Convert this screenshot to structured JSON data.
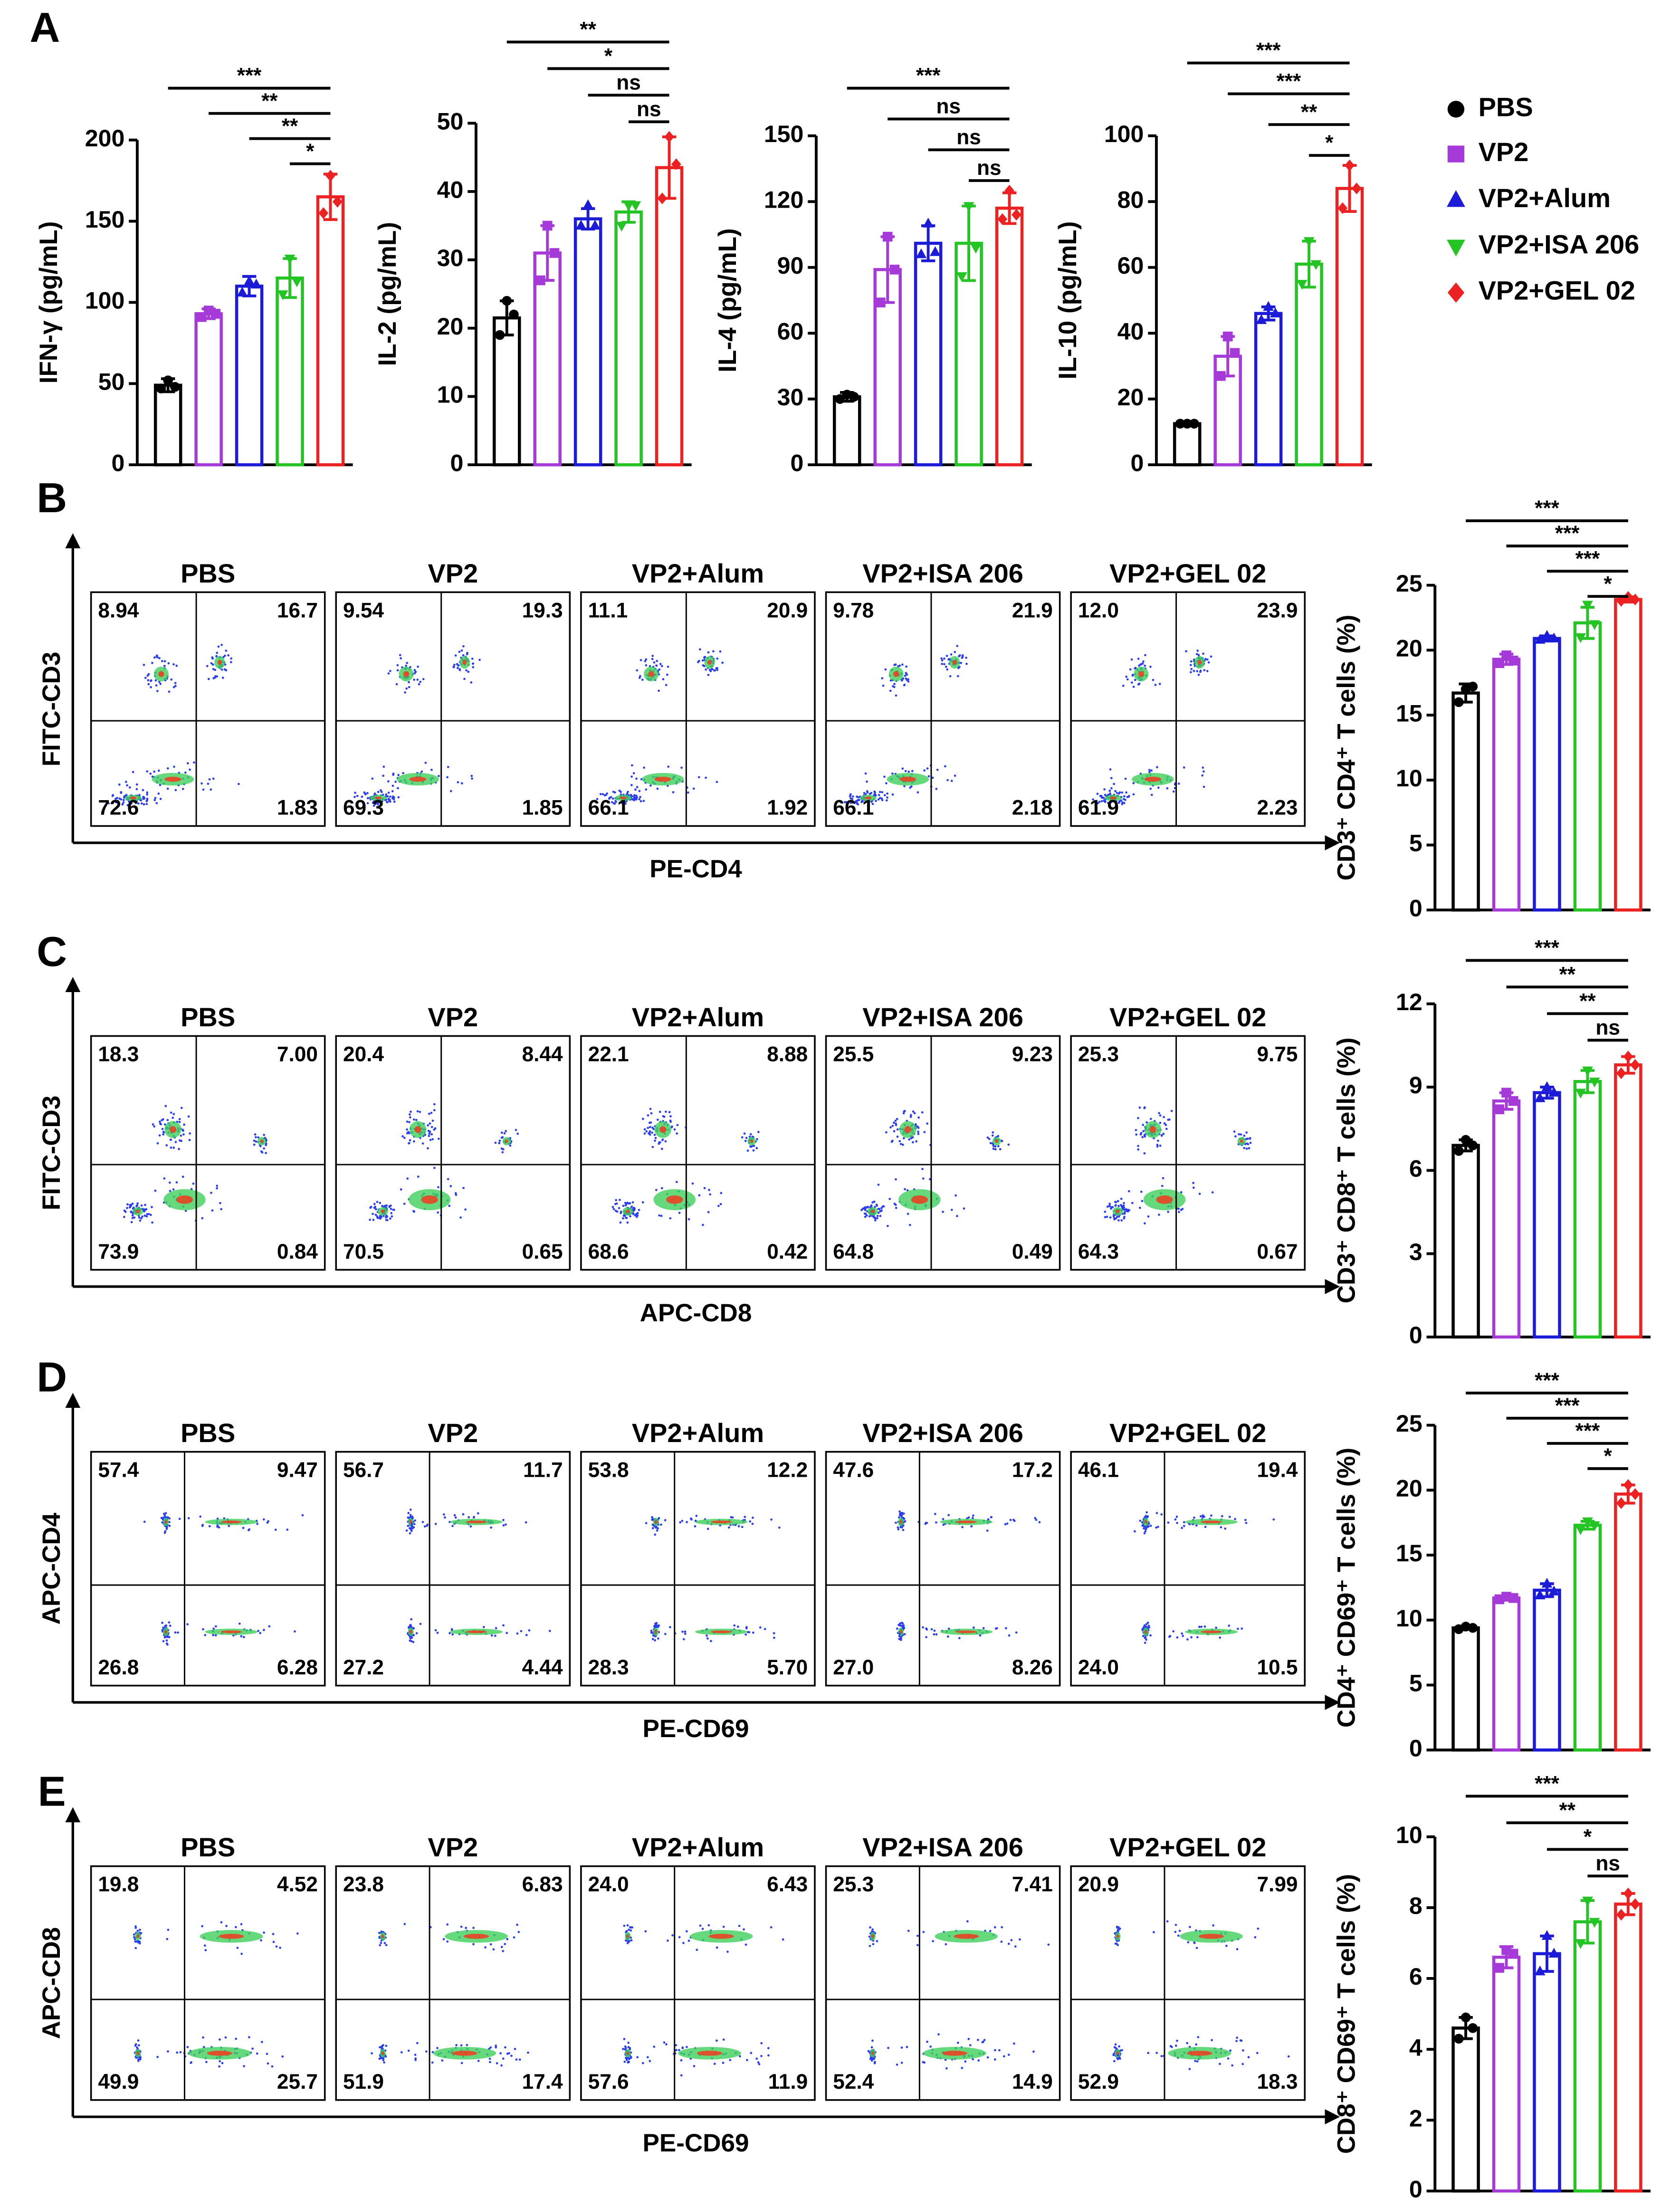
{
  "panel_labels": [
    "A",
    "B",
    "C",
    "D",
    "E"
  ],
  "legend": {
    "names": [
      "PBS",
      "VP2",
      "VP2+Alum",
      "VP2+ISA 206",
      "VP2+GEL 02"
    ],
    "colors": [
      "#000000",
      "#a63ad8",
      "#1c1cd8",
      "#25c425",
      "#ec2222"
    ],
    "markers": [
      "circle",
      "square",
      "triangle",
      "triangle-down",
      "diamond"
    ]
  },
  "chart_data": [
    {
      "type": "bar",
      "y_label": "IFN-γ (pg/mL)",
      "ylim": [
        0,
        200
      ],
      "yticks": [
        0,
        50,
        100,
        150,
        200
      ],
      "values": [
        49,
        93,
        110,
        115,
        165
      ],
      "errors": [
        4,
        3,
        6,
        12,
        14
      ],
      "points": [
        [
          47,
          52,
          48
        ],
        [
          91,
          95,
          93
        ],
        [
          106,
          113,
          111
        ],
        [
          105,
          127,
          113
        ],
        [
          155,
          178,
          162
        ]
      ],
      "significance": [
        {
          "pair": [
            0,
            4
          ],
          "label": "***"
        },
        {
          "pair": [
            1,
            4
          ],
          "label": "**"
        },
        {
          "pair": [
            2,
            4
          ],
          "label": "**"
        },
        {
          "pair": [
            3,
            4
          ],
          "label": "*"
        }
      ]
    },
    {
      "type": "bar",
      "y_label": "IL-2 (pg/mL)",
      "ylim": [
        0,
        50
      ],
      "yticks": [
        0,
        10,
        20,
        30,
        40,
        50
      ],
      "values": [
        21.5,
        31,
        36,
        37,
        43.5
      ],
      "errors": [
        2.5,
        4,
        1.5,
        1.5,
        4.5
      ],
      "points": [
        [
          19,
          24,
          22
        ],
        [
          27,
          35,
          31
        ],
        [
          35,
          38,
          35
        ],
        [
          35,
          38,
          38
        ],
        [
          39,
          48,
          44
        ]
      ],
      "significance": [
        {
          "pair": [
            0,
            4
          ],
          "label": "**"
        },
        {
          "pair": [
            1,
            4
          ],
          "label": "*"
        },
        {
          "pair": [
            2,
            4
          ],
          "label": "ns"
        },
        {
          "pair": [
            3,
            4
          ],
          "label": "ns"
        }
      ]
    },
    {
      "type": "bar",
      "y_label": "IL-4 (pg/mL)",
      "ylim": [
        0,
        150
      ],
      "yticks": [
        0,
        30,
        60,
        90,
        120,
        150
      ],
      "values": [
        31,
        89,
        101,
        101,
        117
      ],
      "errors": [
        2,
        15,
        8,
        17,
        7
      ],
      "points": [
        [
          30,
          32,
          31
        ],
        [
          74,
          104,
          89
        ],
        [
          96,
          110,
          97
        ],
        [
          86,
          118,
          99
        ],
        [
          112,
          125,
          114
        ]
      ],
      "significance": [
        {
          "pair": [
            0,
            4
          ],
          "label": "***"
        },
        {
          "pair": [
            1,
            4
          ],
          "label": "ns"
        },
        {
          "pair": [
            2,
            4
          ],
          "label": "ns"
        },
        {
          "pair": [
            3,
            4
          ],
          "label": "ns"
        }
      ]
    },
    {
      "type": "bar",
      "y_label": "IL-10 (pg/mL)",
      "ylim": [
        0,
        100
      ],
      "yticks": [
        0,
        20,
        40,
        60,
        80,
        100
      ],
      "values": [
        12.5,
        33,
        46,
        61,
        84
      ],
      "errors": [
        0.5,
        6,
        2,
        7,
        7
      ],
      "points": [
        [
          12.5,
          12.5,
          12.5
        ],
        [
          27,
          39,
          34
        ],
        [
          44,
          48,
          46
        ],
        [
          55,
          68,
          61
        ],
        [
          78,
          91,
          84
        ]
      ],
      "significance": [
        {
          "pair": [
            0,
            4
          ],
          "label": "***"
        },
        {
          "pair": [
            1,
            4
          ],
          "label": "***"
        },
        {
          "pair": [
            2,
            4
          ],
          "label": "**"
        },
        {
          "pair": [
            3,
            4
          ],
          "label": "*"
        }
      ]
    },
    {
      "type": "bar",
      "y_label": "CD3⁺ CD4⁺ T cells (%)",
      "ylim": [
        0,
        25
      ],
      "yticks": [
        0,
        5,
        10,
        15,
        20,
        25
      ],
      "values": [
        16.7,
        19.3,
        20.9,
        22.1,
        23.9
      ],
      "errors": [
        0.7,
        0.4,
        0.2,
        1.2,
        0.2
      ],
      "points": [
        [
          16,
          17,
          17.2
        ],
        [
          19,
          19.6,
          19.2
        ],
        [
          20.8,
          21.1,
          20.9
        ],
        [
          21,
          23.5,
          22
        ],
        [
          23.8,
          24.1,
          23.9
        ]
      ],
      "significance": [
        {
          "pair": [
            0,
            4
          ],
          "label": "***"
        },
        {
          "pair": [
            1,
            4
          ],
          "label": "***"
        },
        {
          "pair": [
            2,
            4
          ],
          "label": "***"
        },
        {
          "pair": [
            3,
            4
          ],
          "label": "*"
        }
      ]
    },
    {
      "type": "bar",
      "y_label": "CD3⁺ CD8⁺ T cells (%)",
      "ylim": [
        0,
        12
      ],
      "yticks": [
        0,
        3,
        6,
        9,
        12
      ],
      "values": [
        6.9,
        8.5,
        8.8,
        9.2,
        9.8
      ],
      "errors": [
        0.2,
        0.3,
        0.2,
        0.4,
        0.3
      ],
      "points": [
        [
          6.7,
          7.1,
          6.9
        ],
        [
          8.2,
          8.8,
          8.5
        ],
        [
          8.6,
          9.0,
          8.8
        ],
        [
          8.8,
          9.6,
          9.2
        ],
        [
          9.5,
          10.1,
          9.8
        ]
      ],
      "significance": [
        {
          "pair": [
            0,
            4
          ],
          "label": "***"
        },
        {
          "pair": [
            1,
            4
          ],
          "label": "**"
        },
        {
          "pair": [
            2,
            4
          ],
          "label": "**"
        },
        {
          "pair": [
            3,
            4
          ],
          "label": "ns"
        }
      ]
    },
    {
      "type": "bar",
      "y_label": "CD4⁺ CD69⁺ T cells (%)",
      "ylim": [
        0,
        25
      ],
      "yticks": [
        0,
        5,
        10,
        15,
        20,
        25
      ],
      "values": [
        9.4,
        11.7,
        12.3,
        17.3,
        19.7
      ],
      "errors": [
        0.1,
        0.1,
        0.5,
        0.3,
        0.7
      ],
      "points": [
        [
          9.3,
          9.5,
          9.4
        ],
        [
          11.6,
          11.8,
          11.7
        ],
        [
          11.9,
          12.8,
          12.2
        ],
        [
          17.0,
          17.6,
          17.3
        ],
        [
          19.0,
          20.4,
          19.7
        ]
      ],
      "significance": [
        {
          "pair": [
            0,
            4
          ],
          "label": "***"
        },
        {
          "pair": [
            1,
            4
          ],
          "label": "***"
        },
        {
          "pair": [
            2,
            4
          ],
          "label": "***"
        },
        {
          "pair": [
            3,
            4
          ],
          "label": "*"
        }
      ]
    },
    {
      "type": "bar",
      "y_label": "CD8⁺ CD69⁺ T cells (%)",
      "ylim": [
        0,
        10
      ],
      "yticks": [
        0,
        2,
        4,
        6,
        8,
        10
      ],
      "values": [
        4.6,
        6.6,
        6.7,
        7.6,
        8.1
      ],
      "errors": [
        0.3,
        0.3,
        0.5,
        0.6,
        0.3
      ],
      "points": [
        [
          4.3,
          4.9,
          4.6
        ],
        [
          6.3,
          6.8,
          6.7
        ],
        [
          6.2,
          7.2,
          6.7
        ],
        [
          7.0,
          8.2,
          7.6
        ],
        [
          7.8,
          8.4,
          8.1
        ]
      ],
      "significance": [
        {
          "pair": [
            0,
            4
          ],
          "label": "***"
        },
        {
          "pair": [
            1,
            4
          ],
          "label": "**"
        },
        {
          "pair": [
            2,
            4
          ],
          "label": "*"
        },
        {
          "pair": [
            3,
            4
          ],
          "label": "ns"
        }
      ]
    }
  ],
  "flow_panels": [
    {
      "y_label": "FITC-CD3",
      "x_label": "PE-CD4",
      "plots": [
        {
          "title": "PBS",
          "quadrants": [
            "8.94",
            "16.7",
            "72.6",
            "1.83"
          ]
        },
        {
          "title": "VP2",
          "quadrants": [
            "9.54",
            "19.3",
            "69.3",
            "1.85"
          ]
        },
        {
          "title": "VP2+Alum",
          "quadrants": [
            "11.1",
            "20.9",
            "66.1",
            "1.92"
          ]
        },
        {
          "title": "VP2+ISA 206",
          "quadrants": [
            "9.78",
            "21.9",
            "66.1",
            "2.18"
          ]
        },
        {
          "title": "VP2+GEL 02",
          "quadrants": [
            "12.0",
            "23.9",
            "61.9",
            "2.23"
          ]
        }
      ]
    },
    {
      "y_label": "FITC-CD3",
      "x_label": "APC-CD8",
      "plots": [
        {
          "title": "PBS",
          "quadrants": [
            "18.3",
            "7.00",
            "73.9",
            "0.84"
          ]
        },
        {
          "title": "VP2",
          "quadrants": [
            "20.4",
            "8.44",
            "70.5",
            "0.65"
          ]
        },
        {
          "title": "VP2+Alum",
          "quadrants": [
            "22.1",
            "8.88",
            "68.6",
            "0.42"
          ]
        },
        {
          "title": "VP2+ISA 206",
          "quadrants": [
            "25.5",
            "9.23",
            "64.8",
            "0.49"
          ]
        },
        {
          "title": "VP2+GEL 02",
          "quadrants": [
            "25.3",
            "9.75",
            "64.3",
            "0.67"
          ]
        }
      ]
    },
    {
      "y_label": "APC-CD4",
      "x_label": "PE-CD69",
      "plots": [
        {
          "title": "PBS",
          "quadrants": [
            "57.4",
            "9.47",
            "26.8",
            "6.28"
          ]
        },
        {
          "title": "VP2",
          "quadrants": [
            "56.7",
            "11.7",
            "27.2",
            "4.44"
          ]
        },
        {
          "title": "VP2+Alum",
          "quadrants": [
            "53.8",
            "12.2",
            "28.3",
            "5.70"
          ]
        },
        {
          "title": "VP2+ISA 206",
          "quadrants": [
            "47.6",
            "17.2",
            "27.0",
            "8.26"
          ]
        },
        {
          "title": "VP2+GEL 02",
          "quadrants": [
            "46.1",
            "19.4",
            "24.0",
            "10.5"
          ]
        }
      ]
    },
    {
      "y_label": "APC-CD8",
      "x_label": "PE-CD69",
      "plots": [
        {
          "title": "PBS",
          "quadrants": [
            "19.8",
            "4.52",
            "49.9",
            "25.7"
          ]
        },
        {
          "title": "VP2",
          "quadrants": [
            "23.8",
            "6.83",
            "51.9",
            "17.4"
          ]
        },
        {
          "title": "VP2+Alum",
          "quadrants": [
            "24.0",
            "6.43",
            "57.6",
            "11.9"
          ]
        },
        {
          "title": "VP2+ISA 206",
          "quadrants": [
            "25.3",
            "7.41",
            "52.4",
            "14.9"
          ]
        },
        {
          "title": "VP2+GEL 02",
          "quadrants": [
            "20.9",
            "7.99",
            "52.9",
            "18.3"
          ]
        }
      ]
    }
  ]
}
